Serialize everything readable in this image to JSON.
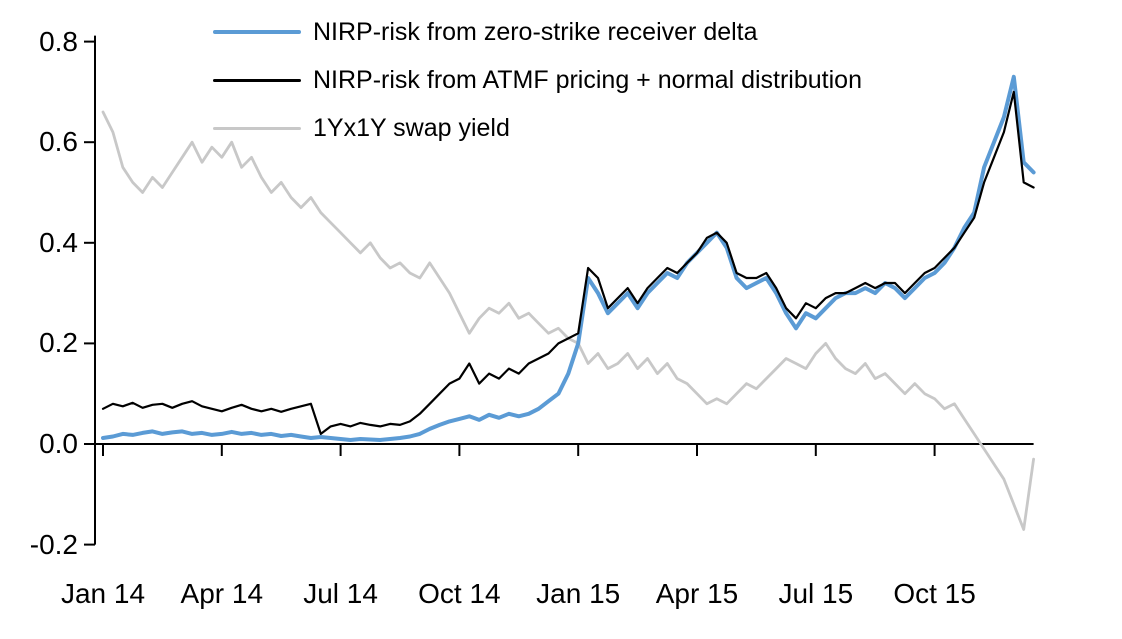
{
  "chart_data": {
    "type": "line",
    "title": "",
    "xlabel": "",
    "ylabel": "",
    "xlim_months": [
      0,
      23.5
    ],
    "ylim": [
      -0.2,
      0.8
    ],
    "grid": false,
    "legend_position": "top-left",
    "x_ticks": [
      {
        "t": 0,
        "label": "Jan 14"
      },
      {
        "t": 3,
        "label": "Apr 14"
      },
      {
        "t": 6,
        "label": "Jul 14"
      },
      {
        "t": 9,
        "label": "Oct 14"
      },
      {
        "t": 12,
        "label": "Jan 15"
      },
      {
        "t": 15,
        "label": "Apr 15"
      },
      {
        "t": 18,
        "label": "Jul 15"
      },
      {
        "t": 21,
        "label": "Oct 15"
      }
    ],
    "y_ticks": [
      {
        "v": 0.8,
        "label": "0.8"
      },
      {
        "v": 0.6,
        "label": "0.6"
      },
      {
        "v": 0.4,
        "label": "0.4"
      },
      {
        "v": 0.2,
        "label": "0.2"
      },
      {
        "v": 0.0,
        "label": "0.0"
      },
      {
        "v": -0.2,
        "label": "-0.2"
      }
    ],
    "axis_color": "#000000",
    "x_start": 0,
    "x_step_months": 0.25,
    "series": [
      {
        "name": "NIRP-risk from zero-strike receiver delta",
        "color": "#5B9BD5",
        "width": 4,
        "values": [
          0.012,
          0.015,
          0.02,
          0.018,
          0.022,
          0.025,
          0.02,
          0.023,
          0.025,
          0.02,
          0.022,
          0.018,
          0.02,
          0.024,
          0.02,
          0.022,
          0.018,
          0.02,
          0.016,
          0.018,
          0.015,
          0.012,
          0.014,
          0.012,
          0.01,
          0.008,
          0.01,
          0.009,
          0.008,
          0.01,
          0.012,
          0.015,
          0.02,
          0.03,
          0.038,
          0.045,
          0.05,
          0.055,
          0.048,
          0.058,
          0.052,
          0.06,
          0.055,
          0.06,
          0.07,
          0.085,
          0.1,
          0.14,
          0.2,
          0.33,
          0.3,
          0.26,
          0.28,
          0.3,
          0.27,
          0.3,
          0.32,
          0.34,
          0.33,
          0.36,
          0.38,
          0.4,
          0.42,
          0.39,
          0.33,
          0.31,
          0.32,
          0.33,
          0.3,
          0.26,
          0.23,
          0.26,
          0.25,
          0.27,
          0.29,
          0.3,
          0.3,
          0.31,
          0.3,
          0.32,
          0.31,
          0.29,
          0.31,
          0.33,
          0.34,
          0.36,
          0.39,
          0.43,
          0.46,
          0.55,
          0.6,
          0.65,
          0.73,
          0.56,
          0.54
        ]
      },
      {
        "name": "NIRP-risk from ATMF pricing + normal distribution",
        "color": "#000000",
        "width": 2.2,
        "values": [
          0.07,
          0.08,
          0.075,
          0.082,
          0.072,
          0.078,
          0.08,
          0.072,
          0.08,
          0.085,
          0.075,
          0.07,
          0.065,
          0.072,
          0.078,
          0.07,
          0.065,
          0.07,
          0.064,
          0.07,
          0.075,
          0.08,
          0.02,
          0.035,
          0.04,
          0.035,
          0.042,
          0.038,
          0.035,
          0.04,
          0.038,
          0.045,
          0.06,
          0.08,
          0.1,
          0.12,
          0.13,
          0.16,
          0.12,
          0.14,
          0.13,
          0.15,
          0.14,
          0.16,
          0.17,
          0.18,
          0.2,
          0.21,
          0.22,
          0.35,
          0.33,
          0.27,
          0.29,
          0.31,
          0.28,
          0.31,
          0.33,
          0.35,
          0.34,
          0.36,
          0.38,
          0.41,
          0.42,
          0.4,
          0.34,
          0.33,
          0.33,
          0.34,
          0.31,
          0.27,
          0.25,
          0.28,
          0.27,
          0.29,
          0.3,
          0.3,
          0.31,
          0.32,
          0.31,
          0.32,
          0.32,
          0.3,
          0.32,
          0.34,
          0.35,
          0.37,
          0.39,
          0.42,
          0.45,
          0.52,
          0.57,
          0.62,
          0.7,
          0.52,
          0.51
        ]
      },
      {
        "name": "1Yx1Y swap yield",
        "color": "#C8C8C8",
        "width": 2.8,
        "values": [
          0.66,
          0.62,
          0.55,
          0.52,
          0.5,
          0.53,
          0.51,
          0.54,
          0.57,
          0.6,
          0.56,
          0.59,
          0.57,
          0.6,
          0.55,
          0.57,
          0.53,
          0.5,
          0.52,
          0.49,
          0.47,
          0.49,
          0.46,
          0.44,
          0.42,
          0.4,
          0.38,
          0.4,
          0.37,
          0.35,
          0.36,
          0.34,
          0.33,
          0.36,
          0.33,
          0.3,
          0.26,
          0.22,
          0.25,
          0.27,
          0.26,
          0.28,
          0.25,
          0.26,
          0.24,
          0.22,
          0.23,
          0.21,
          0.2,
          0.16,
          0.18,
          0.15,
          0.16,
          0.18,
          0.15,
          0.17,
          0.14,
          0.16,
          0.13,
          0.12,
          0.1,
          0.08,
          0.09,
          0.08,
          0.1,
          0.12,
          0.11,
          0.13,
          0.15,
          0.17,
          0.16,
          0.15,
          0.18,
          0.2,
          0.17,
          0.15,
          0.14,
          0.16,
          0.13,
          0.14,
          0.12,
          0.1,
          0.12,
          0.1,
          0.09,
          0.07,
          0.08,
          0.05,
          0.02,
          -0.01,
          -0.04,
          -0.07,
          -0.12,
          -0.17,
          -0.03
        ]
      }
    ]
  }
}
